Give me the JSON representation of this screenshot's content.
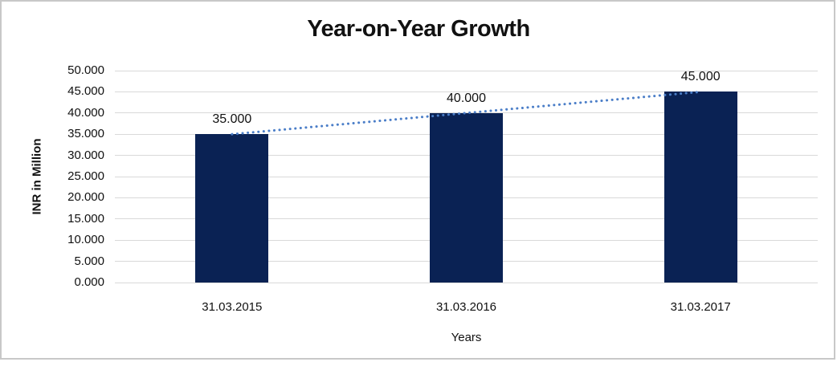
{
  "chart_data": {
    "type": "bar",
    "title": "Year-on-Year Growth",
    "xlabel": "Years",
    "ylabel": "INR in Million",
    "categories": [
      "31.03.2015",
      "31.03.2016",
      "31.03.2017"
    ],
    "values": [
      35000,
      40000,
      45000
    ],
    "value_labels": [
      "35.000",
      "40.000",
      "45.000"
    ],
    "ylim": [
      0,
      50000
    ],
    "y_tick_step": 5000,
    "y_ticks": [
      {
        "value": 0,
        "label": "0.000"
      },
      {
        "value": 5000,
        "label": "5.000"
      },
      {
        "value": 10000,
        "label": "10.000"
      },
      {
        "value": 15000,
        "label": "15.000"
      },
      {
        "value": 20000,
        "label": "20.000"
      },
      {
        "value": 25000,
        "label": "25.000"
      },
      {
        "value": 30000,
        "label": "30.000"
      },
      {
        "value": 35000,
        "label": "35.000"
      },
      {
        "value": 40000,
        "label": "40.000"
      },
      {
        "value": 45000,
        "label": "45.000"
      },
      {
        "value": 50000,
        "label": "50.000"
      }
    ],
    "grid": "horizontal",
    "legend": "none",
    "trendline": {
      "type": "linear",
      "style": "dotted",
      "from": {
        "category_index": 0,
        "value": 35000
      },
      "to": {
        "category_index": 2,
        "value": 45000
      }
    },
    "colors": {
      "bar": "#0a2254",
      "trendline": "#4b7ec8",
      "gridline": "#d9d9d9",
      "text": "#111111",
      "frame_border": "#c8c8c8"
    }
  }
}
